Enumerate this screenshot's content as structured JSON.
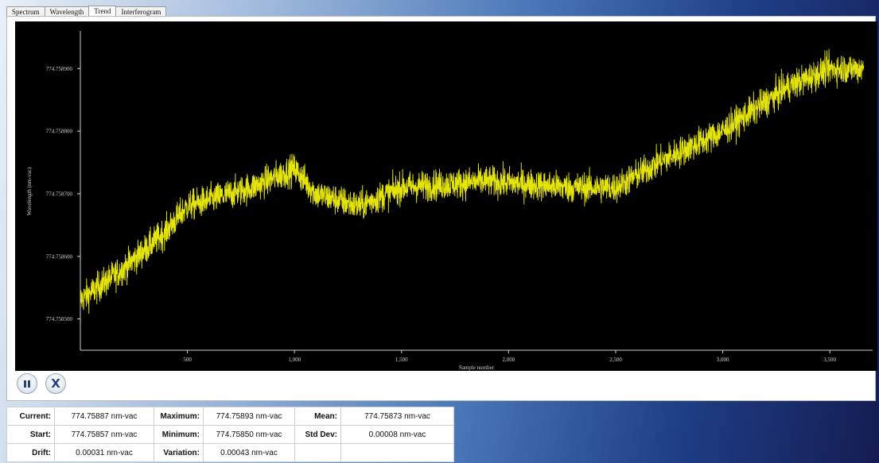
{
  "tabs": [
    {
      "label": "Spectrum",
      "active": false
    },
    {
      "label": "Wavelength",
      "active": false
    },
    {
      "label": "Trend",
      "active": true
    },
    {
      "label": "Interferogram",
      "active": false
    }
  ],
  "chart_data": {
    "type": "line",
    "xlabel": "Sample number",
    "ylabel": "Wavelength (nm-vac)",
    "xlim": [
      0,
      3700
    ],
    "ylim": [
      774.75845,
      774.75896
    ],
    "x_ticks": [
      500,
      1000,
      1500,
      2000,
      2500,
      3000,
      3500
    ],
    "x_tick_labels": [
      "500",
      "1,000",
      "1,500",
      "2,000",
      "2,500",
      "3,000",
      "3,500"
    ],
    "y_ticks": [
      774.7585,
      774.7586,
      774.7587,
      774.7588,
      774.7589
    ],
    "y_tick_labels": [
      "774.758500",
      "774.758600",
      "774.758700",
      "774.758800",
      "774.758900"
    ],
    "grid": false,
    "line_color": "#e4e40a",
    "sample_count": 3660,
    "noise_sd": 1.2e-05,
    "trend": {
      "x": [
        0,
        200,
        400,
        500,
        700,
        800,
        1000,
        1100,
        1300,
        1500,
        1900,
        2300,
        2500,
        2700,
        3000,
        3300,
        3500,
        3660
      ],
      "y": [
        774.75853,
        774.75858,
        774.75864,
        774.75868,
        774.7587,
        774.75871,
        774.75874,
        774.7587,
        774.75868,
        774.75871,
        774.75872,
        774.75871,
        774.75871,
        774.75875,
        774.7588,
        774.75887,
        774.7589,
        774.7589
      ]
    }
  },
  "controls": {
    "pause_icon": "pause-icon",
    "stop_icon": "close-x-icon"
  },
  "stats": {
    "rows": [
      [
        {
          "label": "Current:",
          "value": "774.75887 nm-vac"
        },
        {
          "label": "Maximum:",
          "value": "774.75893 nm-vac"
        },
        {
          "label": "Mean:",
          "value": "774.75873 nm-vac"
        }
      ],
      [
        {
          "label": "Start:",
          "value": "774.75857 nm-vac"
        },
        {
          "label": "Minimum:",
          "value": "774.75850 nm-vac"
        },
        {
          "label": "Std Dev:",
          "value": "0.00008 nm-vac"
        }
      ],
      [
        {
          "label": "Drift:",
          "value": "0.00031 nm-vac"
        },
        {
          "label": "Variation:",
          "value": "0.00043 nm-vac"
        },
        {
          "label": "",
          "value": ""
        }
      ]
    ]
  }
}
